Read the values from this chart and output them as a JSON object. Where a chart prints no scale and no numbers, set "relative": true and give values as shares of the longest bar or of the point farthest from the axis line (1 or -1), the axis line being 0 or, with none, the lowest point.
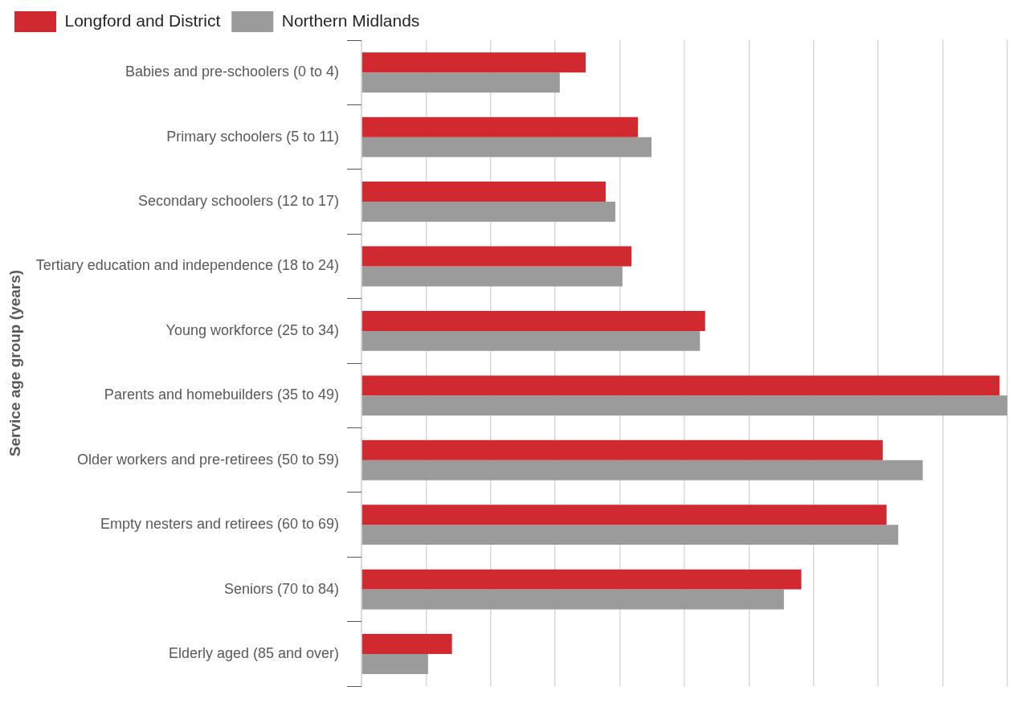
{
  "chart_data": {
    "type": "bar",
    "orientation": "horizontal",
    "relative": true,
    "ylabel": "Service age group (years)",
    "categories": [
      "Babies and pre-schoolers (0 to 4)",
      "Primary schoolers (5 to 11)",
      "Secondary schoolers (12 to 17)",
      "Tertiary education and independence (18 to 24)",
      "Young workforce (25 to 34)",
      "Parents and homebuilders (35 to 49)",
      "Older workers and pre-retirees (50 to 59)",
      "Empty nesters and retirees (60 to 69)",
      "Seniors (70 to 84)",
      "Elderly aged (85 and over)"
    ],
    "series": [
      {
        "name": "Longford and District",
        "color": "#d0292f",
        "values": [
          0.347,
          0.428,
          0.378,
          0.418,
          0.532,
          0.988,
          0.807,
          0.813,
          0.681,
          0.14
        ]
      },
      {
        "name": "Northern Midlands",
        "color": "#9b9b9b",
        "values": [
          0.307,
          0.449,
          0.393,
          0.404,
          0.524,
          1,
          0.869,
          0.831,
          0.654,
          0.103
        ]
      }
    ],
    "grid": "x",
    "legend": "top left"
  }
}
